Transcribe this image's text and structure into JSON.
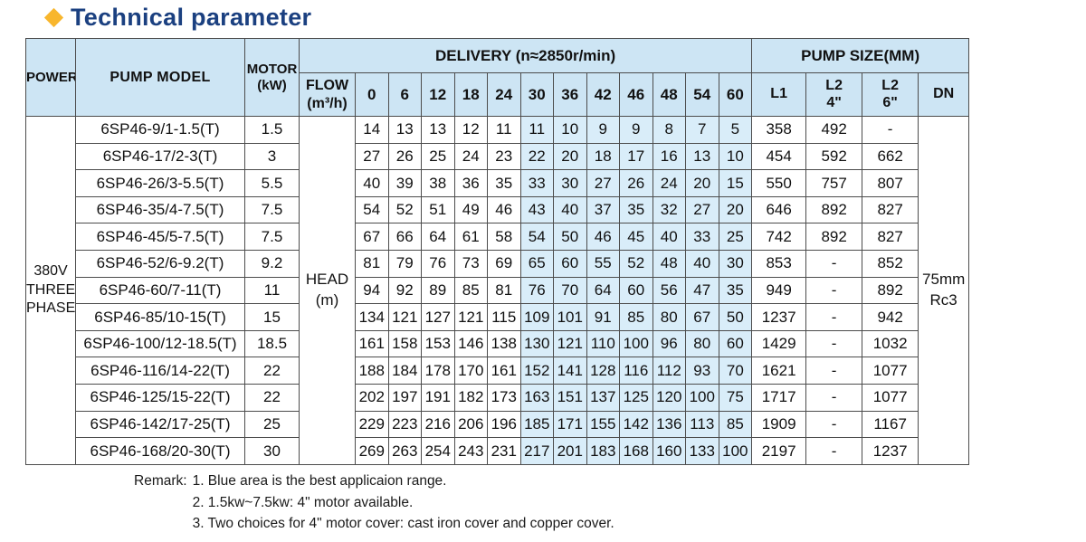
{
  "title": "Technical parameter",
  "colors": {
    "title_text": "#1b4080",
    "diamond": "#f8b62d",
    "header_bg": "#cde5f4",
    "highlight_bg": "#d9edf9",
    "border": "#4c4c4c"
  },
  "headers": {
    "power": "POWER",
    "pump_model": "PUMP MODEL",
    "motor": "MOTOR\n(kW)",
    "delivery": "DELIVERY  (n≈2850r/min)",
    "pump_size": "PUMP SIZE(MM)",
    "flow": "FLOW\n(m³/h)",
    "l1": "L1",
    "l2_4": "L2\n4\"",
    "l2_6": "L2\n6\"",
    "dn": "DN"
  },
  "delivery_flows": [
    "0",
    "6",
    "12",
    "18",
    "24",
    "30",
    "36",
    "42",
    "46",
    "48",
    "54",
    "60"
  ],
  "highlight_start_index": 5,
  "power_value": "380V\nTHREE\nPHASE",
  "head_label": "HEAD\n(m)",
  "dn_value": "75mm\nRc3",
  "rows": [
    {
      "model": "6SP46-9/1-1.5(T)",
      "motor": "1.5",
      "heads": [
        "14",
        "13",
        "13",
        "12",
        "11",
        "11",
        "10",
        "9",
        "9",
        "8",
        "7",
        "5"
      ],
      "l1": "358",
      "l2_4": "492",
      "l2_6": "-"
    },
    {
      "model": "6SP46-17/2-3(T)",
      "motor": "3",
      "heads": [
        "27",
        "26",
        "25",
        "24",
        "23",
        "22",
        "20",
        "18",
        "17",
        "16",
        "13",
        "10"
      ],
      "l1": "454",
      "l2_4": "592",
      "l2_6": "662"
    },
    {
      "model": "6SP46-26/3-5.5(T)",
      "motor": "5.5",
      "heads": [
        "40",
        "39",
        "38",
        "36",
        "35",
        "33",
        "30",
        "27",
        "26",
        "24",
        "20",
        "15"
      ],
      "l1": "550",
      "l2_4": "757",
      "l2_6": "807"
    },
    {
      "model": "6SP46-35/4-7.5(T)",
      "motor": "7.5",
      "heads": [
        "54",
        "52",
        "51",
        "49",
        "46",
        "43",
        "40",
        "37",
        "35",
        "32",
        "27",
        "20"
      ],
      "l1": "646",
      "l2_4": "892",
      "l2_6": "827"
    },
    {
      "model": "6SP46-45/5-7.5(T)",
      "motor": "7.5",
      "heads": [
        "67",
        "66",
        "64",
        "61",
        "58",
        "54",
        "50",
        "46",
        "45",
        "40",
        "33",
        "25"
      ],
      "l1": "742",
      "l2_4": "892",
      "l2_6": "827"
    },
    {
      "model": "6SP46-52/6-9.2(T)",
      "motor": "9.2",
      "heads": [
        "81",
        "79",
        "76",
        "73",
        "69",
        "65",
        "60",
        "55",
        "52",
        "48",
        "40",
        "30"
      ],
      "l1": "853",
      "l2_4": "-",
      "l2_6": "852"
    },
    {
      "model": "6SP46-60/7-11(T)",
      "motor": "11",
      "heads": [
        "94",
        "92",
        "89",
        "85",
        "81",
        "76",
        "70",
        "64",
        "60",
        "56",
        "47",
        "35"
      ],
      "l1": "949",
      "l2_4": "-",
      "l2_6": "892"
    },
    {
      "model": "6SP46-85/10-15(T)",
      "motor": "15",
      "heads": [
        "134",
        "121",
        "127",
        "121",
        "115",
        "109",
        "101",
        "91",
        "85",
        "80",
        "67",
        "50"
      ],
      "l1": "1237",
      "l2_4": "-",
      "l2_6": "942"
    },
    {
      "model": "6SP46-100/12-18.5(T)",
      "motor": "18.5",
      "heads": [
        "161",
        "158",
        "153",
        "146",
        "138",
        "130",
        "121",
        "110",
        "100",
        "96",
        "80",
        "60"
      ],
      "l1": "1429",
      "l2_4": "-",
      "l2_6": "1032"
    },
    {
      "model": "6SP46-116/14-22(T)",
      "motor": "22",
      "heads": [
        "188",
        "184",
        "178",
        "170",
        "161",
        "152",
        "141",
        "128",
        "116",
        "112",
        "93",
        "70"
      ],
      "l1": "1621",
      "l2_4": "-",
      "l2_6": "1077"
    },
    {
      "model": "6SP46-125/15-22(T)",
      "motor": "22",
      "heads": [
        "202",
        "197",
        "191",
        "182",
        "173",
        "163",
        "151",
        "137",
        "125",
        "120",
        "100",
        "75"
      ],
      "l1": "1717",
      "l2_4": "-",
      "l2_6": "1077"
    },
    {
      "model": "6SP46-142/17-25(T)",
      "motor": "25",
      "heads": [
        "229",
        "223",
        "216",
        "206",
        "196",
        "185",
        "171",
        "155",
        "142",
        "136",
        "113",
        "85"
      ],
      "l1": "1909",
      "l2_4": "-",
      "l2_6": "1167"
    },
    {
      "model": "6SP46-168/20-30(T)",
      "motor": "30",
      "heads": [
        "269",
        "263",
        "254",
        "243",
        "231",
        "217",
        "201",
        "183",
        "168",
        "160",
        "133",
        "100"
      ],
      "l1": "2197",
      "l2_4": "-",
      "l2_6": "1237"
    }
  ],
  "remarks": {
    "label": "Remark:",
    "items": [
      "1. Blue area is the best applicaion range.",
      "2. 1.5kw~7.5kw: 4\" motor available.",
      "3. Two choices for 4\" motor cover: cast iron cover and copper cover."
    ]
  }
}
